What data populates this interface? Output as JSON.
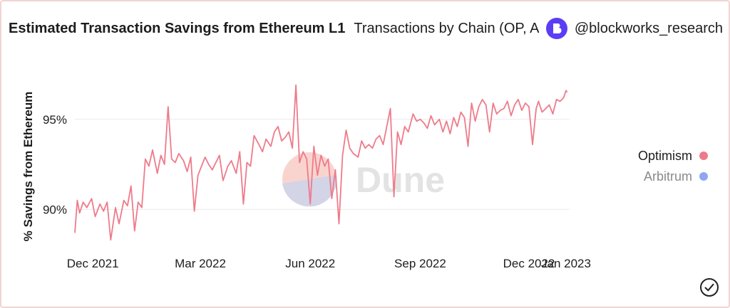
{
  "header": {
    "title": "Estimated Transaction Savings from Ethereum L1",
    "subtitle": "Transactions by Chain (OP, Arbi, ETH)",
    "brand": "@blockworks_research"
  },
  "watermark": "Dune",
  "colors": {
    "optimism": "#ee7b8a",
    "arbitrum": "#8ea7ee",
    "grid": "#ececec",
    "text": "#1d1d1f",
    "muted": "#8a8a8a"
  },
  "chart_data": {
    "type": "line",
    "ylabel": "% Savings from Ethereum",
    "ylim": [
      88.0,
      97.4
    ],
    "xlim": [
      "2021-11-16",
      "2023-01-04"
    ],
    "yticks": [
      {
        "value": 90,
        "label": "90%"
      },
      {
        "value": 95,
        "label": "95%"
      }
    ],
    "xticks": [
      {
        "date": "2021-12-01",
        "label": "Dec 2021"
      },
      {
        "date": "2022-03-01",
        "label": "Mar 2022"
      },
      {
        "date": "2022-06-01",
        "label": "Jun 2022"
      },
      {
        "date": "2022-09-01",
        "label": "Sep 2022"
      },
      {
        "date": "2022-12-01",
        "label": "Dec 2022"
      },
      {
        "date": "2023-01-01",
        "label": "Jan 2023"
      }
    ],
    "legend_position": "right",
    "series": [
      {
        "name": "Optimism",
        "color": "#ee7b8a",
        "x": [
          "2021-11-16",
          "2021-11-18",
          "2021-11-20",
          "2021-11-23",
          "2021-11-26",
          "2021-11-30",
          "2021-12-03",
          "2021-12-07",
          "2021-12-10",
          "2021-12-13",
          "2021-12-16",
          "2021-12-20",
          "2021-12-23",
          "2021-12-27",
          "2021-12-30",
          "2022-01-02",
          "2022-01-05",
          "2022-01-08",
          "2022-01-11",
          "2022-01-14",
          "2022-01-17",
          "2022-01-20",
          "2022-01-24",
          "2022-01-27",
          "2022-01-30",
          "2022-02-02",
          "2022-02-05",
          "2022-02-08",
          "2022-02-11",
          "2022-02-15",
          "2022-02-18",
          "2022-02-21",
          "2022-02-24",
          "2022-02-27",
          "2022-03-02",
          "2022-03-05",
          "2022-03-08",
          "2022-03-11",
          "2022-03-14",
          "2022-03-17",
          "2022-03-20",
          "2022-03-24",
          "2022-03-27",
          "2022-03-31",
          "2022-04-03",
          "2022-04-06",
          "2022-04-09",
          "2022-04-12",
          "2022-04-15",
          "2022-04-19",
          "2022-04-22",
          "2022-04-25",
          "2022-04-29",
          "2022-05-02",
          "2022-05-05",
          "2022-05-08",
          "2022-05-11",
          "2022-05-14",
          "2022-05-17",
          "2022-05-20",
          "2022-05-23",
          "2022-05-26",
          "2022-05-29",
          "2022-06-01",
          "2022-06-04",
          "2022-06-07",
          "2022-06-10",
          "2022-06-13",
          "2022-06-16",
          "2022-06-19",
          "2022-06-22",
          "2022-06-25",
          "2022-06-28",
          "2022-07-01",
          "2022-07-04",
          "2022-07-07",
          "2022-07-11",
          "2022-07-14",
          "2022-07-17",
          "2022-07-20",
          "2022-07-23",
          "2022-07-26",
          "2022-07-29",
          "2022-08-01",
          "2022-08-04",
          "2022-08-07",
          "2022-08-10",
          "2022-08-13",
          "2022-08-16",
          "2022-08-19",
          "2022-08-22",
          "2022-08-26",
          "2022-08-29",
          "2022-09-01",
          "2022-09-04",
          "2022-09-07",
          "2022-09-10",
          "2022-09-13",
          "2022-09-17",
          "2022-09-20",
          "2022-09-23",
          "2022-09-26",
          "2022-09-29",
          "2022-10-02",
          "2022-10-05",
          "2022-10-08",
          "2022-10-11",
          "2022-10-14",
          "2022-10-17",
          "2022-10-20",
          "2022-10-23",
          "2022-10-26",
          "2022-10-29",
          "2022-11-01",
          "2022-11-04",
          "2022-11-07",
          "2022-11-10",
          "2022-11-13",
          "2022-11-16",
          "2022-11-19",
          "2022-11-22",
          "2022-11-25",
          "2022-11-28",
          "2022-12-01",
          "2022-12-04",
          "2022-12-07",
          "2022-12-09",
          "2022-12-12",
          "2022-12-15",
          "2022-12-18",
          "2022-12-21",
          "2022-12-24",
          "2022-12-27",
          "2022-12-30",
          "2023-01-01",
          "2023-01-02"
        ],
        "values": [
          88.7,
          90.5,
          89.8,
          90.4,
          90.1,
          90.6,
          89.6,
          90.3,
          89.9,
          90.4,
          88.3,
          90.1,
          89.2,
          90.5,
          90.2,
          91.3,
          88.8,
          90.4,
          90.1,
          92.8,
          92.4,
          93.3,
          92.0,
          93.0,
          92.5,
          95.7,
          92.8,
          92.6,
          93.1,
          92.7,
          92.1,
          92.9,
          89.9,
          91.9,
          92.4,
          92.9,
          92.5,
          92.2,
          92.6,
          93.0,
          91.6,
          92.4,
          92.7,
          92.0,
          93.2,
          90.3,
          92.6,
          92.4,
          94.1,
          93.6,
          93.2,
          93.9,
          93.5,
          94.3,
          94.6,
          93.8,
          94.0,
          94.3,
          93.4,
          96.9,
          92.6,
          93.2,
          92.8,
          90.3,
          93.5,
          91.9,
          93.0,
          92.4,
          92.8,
          90.6,
          92.2,
          89.2,
          93.0,
          94.4,
          93.4,
          93.1,
          92.9,
          93.8,
          93.4,
          93.6,
          93.4,
          93.9,
          94.1,
          93.6,
          94.6,
          95.6,
          90.7,
          94.3,
          93.6,
          94.6,
          94.3,
          95.3,
          94.9,
          95.0,
          94.8,
          94.5,
          95.2,
          94.7,
          95.0,
          94.3,
          94.9,
          94.2,
          95.1,
          94.6,
          95.4,
          95.1,
          93.5,
          95.9,
          94.9,
          95.7,
          96.1,
          95.8,
          94.3,
          95.9,
          95.3,
          95.5,
          95.6,
          96.0,
          95.2,
          95.8,
          96.1,
          95.5,
          95.9,
          95.7,
          93.6,
          95.6,
          96.0,
          95.4,
          95.6,
          95.8,
          95.3,
          96.1,
          96.0,
          96.2,
          96.6,
          96.5
        ]
      },
      {
        "name": "Arbitrum",
        "color": "#8ea7ee",
        "x": [],
        "values": []
      }
    ]
  }
}
